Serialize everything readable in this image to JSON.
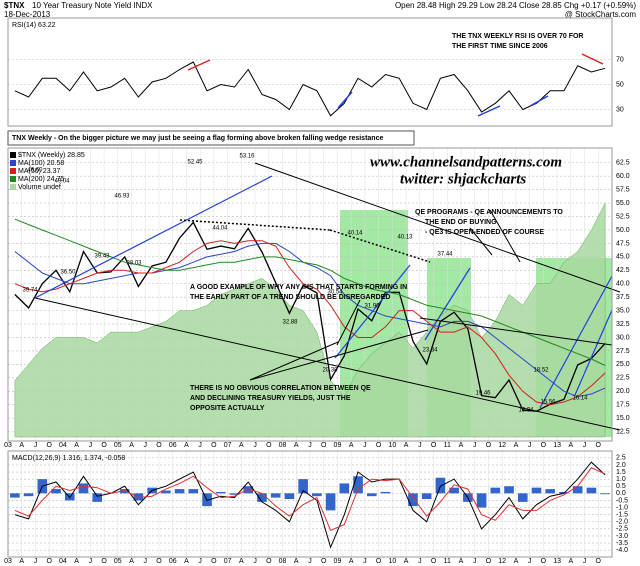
{
  "header": {
    "symbol": "$TNX",
    "name": "10 Year Treasury Note Yield INDX",
    "date": "18-Dec-2013",
    "quote": "Open 28.48 High 29.29 Low 28.24 Close 28.85 Chg +0.17 (+0.59%)",
    "credit": "@ StockCharts.com"
  },
  "chart_data": [
    {
      "type": "line",
      "title": "RSI(14) 63.22",
      "color": "#000000",
      "values": [
        45,
        40,
        55,
        55,
        45,
        60,
        45,
        48,
        55,
        40,
        52,
        55,
        62,
        68,
        45,
        50,
        48,
        62,
        42,
        38,
        30,
        50,
        45,
        25,
        35,
        55,
        48,
        58,
        55,
        35,
        30,
        55,
        58,
        45,
        28,
        35,
        45,
        30,
        35,
        45,
        45,
        65,
        60,
        63
      ],
      "ylim": [
        20,
        100
      ],
      "yticks": [
        30,
        50,
        70
      ],
      "grid": true,
      "annotations": [
        [
          "THE TNX WEEKLY RSI IS OVER 70 FOR",
          "THE FIRST TIME SINCE 2006"
        ]
      ]
    },
    {
      "type": "line",
      "categories": [
        "03",
        "A",
        "J",
        "O",
        "04",
        "A",
        "J",
        "O",
        "05",
        "A",
        "J",
        "O",
        "06",
        "A",
        "J",
        "O",
        "07",
        "A",
        "J",
        "O",
        "08",
        "A",
        "J",
        "O",
        "09",
        "A",
        "J",
        "O",
        "10",
        "A",
        "J",
        "O",
        "11",
        "A",
        "J",
        "O",
        "12",
        "A",
        "J",
        "O",
        "13",
        "A",
        "J",
        "O"
      ],
      "series": [
        {
          "name": "$TNX (Weekly) 28.85",
          "color": "#000000",
          "values": [
            38,
            35.5,
            40,
            42.5,
            38.5,
            46,
            42,
            42.2,
            45,
            39.5,
            43.3,
            44,
            48.5,
            51.4,
            46.4,
            47,
            46.5,
            50.3,
            45.9,
            40.2,
            34.5,
            39.7,
            38.3,
            22.2,
            26.6,
            35.3,
            33.1,
            38.4,
            38.4,
            29.3,
            25.1,
            33,
            34.7,
            31.6,
            19.2,
            18.8,
            22.1,
            16.5,
            16.3,
            17.6,
            18.5,
            24.9,
            26.1,
            28.9
          ]
        },
        {
          "name": "MA(100) 20.58",
          "color": "#2a48c8",
          "values": [
            46,
            44,
            42,
            41,
            40,
            40,
            40.5,
            41,
            41.5,
            42,
            42,
            42.5,
            43,
            44,
            45,
            45.5,
            46,
            47,
            47.5,
            47.5,
            46,
            44,
            43,
            41.5,
            38,
            36,
            35,
            34,
            33.5,
            33,
            32.5,
            32,
            33,
            33,
            32,
            30,
            28,
            26,
            24,
            22,
            20,
            19,
            19.5,
            20.6
          ]
        },
        {
          "name": "MA(50) 23.37",
          "color": "#d02020",
          "values": [
            40,
            39,
            38.5,
            39,
            40,
            41,
            42,
            42.5,
            42.5,
            42,
            42,
            43,
            44,
            46,
            47.5,
            48,
            47.5,
            48,
            48,
            47,
            43,
            40,
            39,
            36,
            32,
            30,
            30,
            32,
            35,
            35,
            33,
            31,
            31,
            32,
            30,
            27,
            23,
            20,
            18,
            17.5,
            18,
            19,
            21,
            23.4
          ]
        },
        {
          "name": "MA(200) 24.75",
          "color": "#208a20",
          "values": [
            52,
            51,
            50,
            49,
            48,
            47,
            46,
            45,
            44,
            43.5,
            43,
            42.5,
            42.5,
            43,
            43.5,
            44,
            44,
            44.5,
            45,
            45,
            44.5,
            44,
            43.5,
            42.5,
            41,
            40,
            39,
            38.5,
            38,
            37,
            36,
            35.5,
            35,
            34.5,
            34,
            33,
            32,
            31,
            30,
            29,
            28,
            27,
            26,
            24.8
          ]
        },
        {
          "name": "Volume undef",
          "color": "#a8d8a0",
          "style": "area",
          "values": [
            22,
            25,
            28,
            30,
            30,
            30,
            29,
            31,
            31,
            31,
            32,
            33,
            35,
            35,
            36,
            38,
            39,
            40,
            41,
            39,
            36,
            35,
            31,
            22,
            19,
            24,
            27,
            29,
            31,
            28,
            31,
            34,
            36,
            35,
            30,
            33,
            38,
            36,
            40,
            40,
            44,
            46,
            50,
            55
          ]
        }
      ],
      "ylim": [
        11.5,
        64.5
      ],
      "yticks": [
        12.5,
        {
          "value": 15,
          "label": "15.0"
        },
        17.5,
        {
          "value": 20,
          "label": "20.0"
        },
        22.5,
        {
          "value": 25,
          "label": "25.0"
        },
        27.5,
        {
          "value": 30,
          "label": "30.0"
        },
        32.5,
        {
          "value": 35,
          "label": "35.0"
        },
        37.5,
        {
          "value": 40,
          "label": "40.0"
        },
        42.5,
        {
          "value": 45,
          "label": "45.0"
        },
        47.5,
        {
          "value": 50,
          "label": "50.0"
        },
        52.5,
        {
          "value": 55,
          "label": "55.0"
        },
        57.5,
        {
          "value": 60,
          "label": "60.0"
        },
        62.5
      ],
      "grid": true,
      "annotations": [
        [
          "TNX Weekly - On the bigger picture we may just be seeing a flag forming above broken falling wedge resistance"
        ],
        [
          "www.channelsandpatterns.com"
        ],
        [
          "twitter: shjackcharts"
        ],
        [
          "QE PROGRAMS - QE ANNOUNCEMENTS TO",
          "THE END OF BUYING",
          "- QE3 IS OPEN-ENDED OF COURSE"
        ],
        [
          "A GOOD EXAMPLE OF WHY ANY IHS THAT STARTS FORMING IN",
          "THE EARLY PART OF A TREND SHOULD BE DISREGARDED"
        ],
        [
          "THERE IS NO OBVIOUS CORRELATION BETWEEN QE",
          "AND DECLINING TREASURY YIELDS, JUST THE",
          "OPPOSITE ACTUALLY"
        ]
      ],
      "point_labels": [
        "46.60",
        "49.04",
        "36.50",
        "39.43",
        "46.93",
        "38.03",
        "52.45",
        "44.04",
        "53.16",
        "32.88",
        "40.14",
        "40.13",
        "30.54",
        "31.96",
        "20.38",
        "37.44",
        "23.34",
        "19.46",
        "18.52",
        "15.56",
        "13.94",
        "16.14",
        "39.74"
      ]
    },
    {
      "type": "line",
      "title": "MACD(12,26,9) 1.316, 1.374, -0.058",
      "categories": [
        "03",
        "A",
        "J",
        "O",
        "04",
        "A",
        "J",
        "O",
        "05",
        "A",
        "J",
        "O",
        "06",
        "A",
        "J",
        "O",
        "07",
        "A",
        "J",
        "O",
        "08",
        "A",
        "J",
        "O",
        "09",
        "A",
        "J",
        "O",
        "10",
        "A",
        "J",
        "O",
        "11",
        "A",
        "J",
        "O",
        "12",
        "A",
        "J",
        "O",
        "13",
        "A",
        "J",
        "O"
      ],
      "series": [
        {
          "color": "#3366cc",
          "style": "bar",
          "values": [
            -0.3,
            -0.2,
            1.0,
            0.3,
            -0.5,
            0.7,
            -0.6,
            0,
            0.3,
            -0.5,
            0.4,
            0.2,
            0.3,
            0.3,
            -0.9,
            0.1,
            -0.1,
            0.5,
            -0.6,
            -0.3,
            -0.4,
            1.0,
            -0.2,
            -1.2,
            0.7,
            1.2,
            -0.2,
            0.1,
            0,
            -0.9,
            -0.4,
            1.1,
            0.4,
            -0.6,
            -1.0,
            0.4,
            0.5,
            -0.6,
            0.4,
            0.3,
            0.1,
            0.5,
            0.4,
            -0.06
          ]
        },
        {
          "color": "#000000",
          "values": [
            -1.5,
            -1.8,
            0.5,
            0.8,
            -0.3,
            1.2,
            -0.2,
            0,
            0.5,
            -0.8,
            0.2,
            0.5,
            1,
            1.5,
            -0.5,
            -0.2,
            -0.3,
            0.8,
            -0.6,
            -1.2,
            -2,
            0.2,
            -0.5,
            -3.8,
            -1.5,
            1.5,
            0.8,
            1,
            1,
            -1.2,
            -2,
            0.5,
            1,
            -0.3,
            -2.5,
            -1.5,
            -0.3,
            -1.8,
            -0.8,
            -0.2,
            0,
            1,
            2.2,
            1.3
          ]
        },
        {
          "color": "#e03030",
          "values": [
            -1.2,
            -1.6,
            -0.5,
            0.5,
            0.2,
            0.5,
            0.4,
            0,
            0.2,
            -0.3,
            -0.2,
            0.3,
            0.7,
            1.2,
            0.4,
            -0.3,
            -0.2,
            0.3,
            0,
            -0.9,
            -1.6,
            -0.8,
            -0.3,
            -2.6,
            -2.2,
            0.3,
            1,
            0.9,
            1,
            -0.3,
            -1.6,
            -0.6,
            0.6,
            0.3,
            -1.5,
            -1.9,
            -0.8,
            -1.2,
            -1.2,
            -0.5,
            -0.1,
            0.5,
            1.8,
            1.37
          ]
        }
      ],
      "ylim": [
        -4.2,
        2.7
      ],
      "yticks": [
        {
          "value": -4,
          "label": "-4.0"
        },
        -3.5,
        {
          "value": -3,
          "label": "-3.0"
        },
        -2.5,
        {
          "value": -2,
          "label": "-2.0"
        },
        -1.5,
        {
          "value": -1,
          "label": "-1.0"
        },
        -0.5,
        {
          "value": 0,
          "label": "0.0"
        },
        0.5,
        {
          "value": 1,
          "label": "1.0"
        },
        1.5,
        {
          "value": 2,
          "label": "2.0"
        },
        2.5
      ],
      "grid": true
    }
  ]
}
